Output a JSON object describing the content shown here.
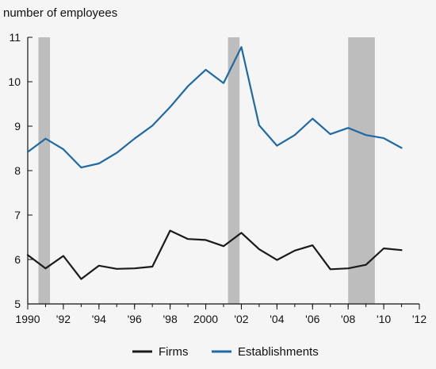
{
  "chart_data": {
    "type": "line",
    "ylabel": "number of employees",
    "xlabel": "",
    "xlim": [
      1990,
      2012
    ],
    "ylim": [
      5,
      11
    ],
    "yticks": [
      5,
      6,
      7,
      8,
      9,
      10,
      11
    ],
    "xticks": [
      {
        "value": 1990,
        "label": "1990"
      },
      {
        "value": 1992,
        "label": "'92"
      },
      {
        "value": 1994,
        "label": "'94"
      },
      {
        "value": 1996,
        "label": "'96"
      },
      {
        "value": 1998,
        "label": "'98"
      },
      {
        "value": 2000,
        "label": "2000"
      },
      {
        "value": 2002,
        "label": "'02"
      },
      {
        "value": 2004,
        "label": "'04"
      },
      {
        "value": 2006,
        "label": "'06"
      },
      {
        "value": 2008,
        "label": "'08"
      },
      {
        "value": 2010,
        "label": "'10"
      },
      {
        "value": 2012,
        "label": "'12"
      }
    ],
    "recessions": [
      {
        "start": 1990.6,
        "end": 1991.25
      },
      {
        "start": 2001.25,
        "end": 2001.9
      },
      {
        "start": 2008.0,
        "end": 2009.5
      }
    ],
    "x": [
      1990,
      1991,
      1992,
      1993,
      1994,
      1995,
      1996,
      1997,
      1998,
      1999,
      2000,
      2001,
      2002,
      2003,
      2004,
      2005,
      2006,
      2007,
      2008,
      2009,
      2010,
      2011
    ],
    "series": [
      {
        "name": "Firms",
        "color": "#1a1a1a",
        "values": [
          6.1,
          5.8,
          6.08,
          5.56,
          5.86,
          5.79,
          5.8,
          5.84,
          6.65,
          6.46,
          6.44,
          6.3,
          6.6,
          6.23,
          5.99,
          6.2,
          6.32,
          5.78,
          5.8,
          5.88,
          6.25,
          6.21
        ]
      },
      {
        "name": "Establishments",
        "color": "#1f6aa5",
        "values": [
          8.42,
          8.72,
          8.48,
          8.07,
          8.16,
          8.4,
          8.72,
          9.01,
          9.43,
          9.9,
          10.27,
          9.97,
          10.78,
          9.02,
          8.56,
          8.8,
          9.17,
          8.82,
          8.96,
          8.8,
          8.73,
          8.51
        ]
      }
    ],
    "legend": {
      "placement": "bottom-center"
    }
  }
}
